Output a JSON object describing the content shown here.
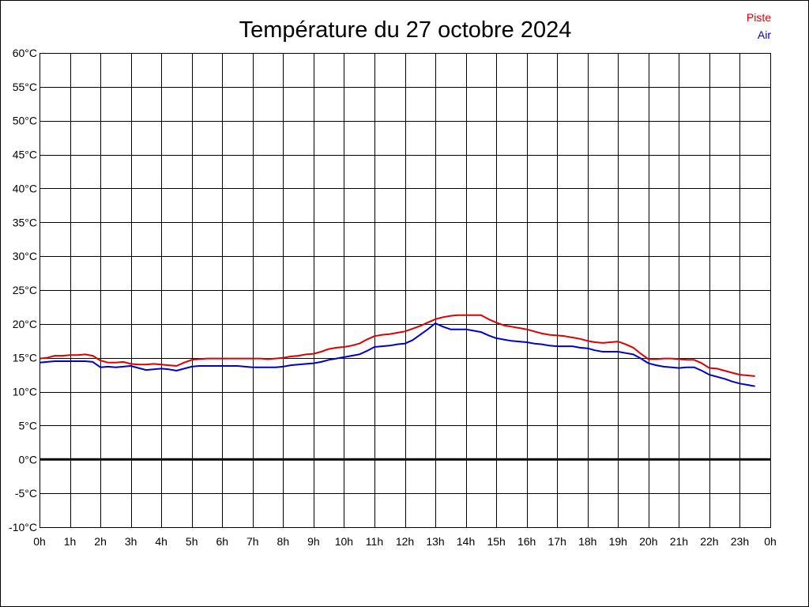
{
  "chart_data": {
    "type": "line",
    "title": "Température du 27 octobre 2024",
    "xlabel": "",
    "ylabel": "",
    "x_ticks": [
      "0h",
      "1h",
      "2h",
      "3h",
      "4h",
      "5h",
      "6h",
      "7h",
      "8h",
      "9h",
      "10h",
      "11h",
      "12h",
      "13h",
      "14h",
      "15h",
      "16h",
      "17h",
      "18h",
      "19h",
      "20h",
      "21h",
      "22h",
      "23h",
      "0h"
    ],
    "y_ticks": [
      "60°C",
      "55°C",
      "50°C",
      "45°C",
      "40°C",
      "35°C",
      "30°C",
      "25°C",
      "20°C",
      "15°C",
      "10°C",
      "5°C",
      "0°C",
      "-5°C",
      "-10°C"
    ],
    "xlim": [
      0,
      24
    ],
    "ylim": [
      -10,
      60
    ],
    "grid": true,
    "zero_line": true,
    "legend_position": "top-right",
    "series": [
      {
        "name": "Piste",
        "color": "#dd0000",
        "points": [
          [
            0,
            14.9
          ],
          [
            0.25,
            15.0
          ],
          [
            0.5,
            15.3
          ],
          [
            0.75,
            15.3
          ],
          [
            1,
            15.4
          ],
          [
            1.25,
            15.4
          ],
          [
            1.5,
            15.5
          ],
          [
            1.75,
            15.3
          ],
          [
            2,
            14.6
          ],
          [
            2.25,
            14.3
          ],
          [
            2.5,
            14.3
          ],
          [
            2.75,
            14.4
          ],
          [
            3,
            14.1
          ],
          [
            3.25,
            14.0
          ],
          [
            3.5,
            14.0
          ],
          [
            3.75,
            14.1
          ],
          [
            4,
            14.0
          ],
          [
            4.25,
            13.9
          ],
          [
            4.5,
            13.8
          ],
          [
            4.75,
            14.3
          ],
          [
            5,
            14.7
          ],
          [
            5.25,
            14.8
          ],
          [
            5.5,
            14.9
          ],
          [
            5.75,
            14.9
          ],
          [
            6,
            14.9
          ],
          [
            6.5,
            14.9
          ],
          [
            7,
            14.9
          ],
          [
            7.25,
            14.9
          ],
          [
            7.5,
            14.8
          ],
          [
            7.75,
            14.9
          ],
          [
            8,
            15.0
          ],
          [
            8.25,
            15.2
          ],
          [
            8.5,
            15.3
          ],
          [
            8.75,
            15.5
          ],
          [
            9,
            15.6
          ],
          [
            9.25,
            15.9
          ],
          [
            9.5,
            16.3
          ],
          [
            9.75,
            16.5
          ],
          [
            10,
            16.6
          ],
          [
            10.25,
            16.8
          ],
          [
            10.5,
            17.1
          ],
          [
            10.75,
            17.7
          ],
          [
            11,
            18.2
          ],
          [
            11.25,
            18.4
          ],
          [
            11.5,
            18.5
          ],
          [
            11.75,
            18.7
          ],
          [
            12,
            18.9
          ],
          [
            12.25,
            19.3
          ],
          [
            12.5,
            19.7
          ],
          [
            12.75,
            20.2
          ],
          [
            13,
            20.7
          ],
          [
            13.25,
            21.0
          ],
          [
            13.5,
            21.2
          ],
          [
            13.75,
            21.3
          ],
          [
            14,
            21.3
          ],
          [
            14.25,
            21.3
          ],
          [
            14.5,
            21.3
          ],
          [
            14.75,
            20.7
          ],
          [
            15,
            20.2
          ],
          [
            15.25,
            19.8
          ],
          [
            15.5,
            19.6
          ],
          [
            15.75,
            19.4
          ],
          [
            16,
            19.2
          ],
          [
            16.25,
            18.9
          ],
          [
            16.5,
            18.6
          ],
          [
            16.75,
            18.4
          ],
          [
            17,
            18.3
          ],
          [
            17.25,
            18.2
          ],
          [
            17.5,
            18.0
          ],
          [
            17.75,
            17.8
          ],
          [
            18,
            17.5
          ],
          [
            18.25,
            17.3
          ],
          [
            18.5,
            17.2
          ],
          [
            18.75,
            17.3
          ],
          [
            19,
            17.4
          ],
          [
            19.25,
            17.0
          ],
          [
            19.5,
            16.5
          ],
          [
            19.75,
            15.6
          ],
          [
            20,
            14.8
          ],
          [
            20.25,
            14.8
          ],
          [
            20.5,
            14.9
          ],
          [
            20.75,
            14.9
          ],
          [
            21,
            14.8
          ],
          [
            21.25,
            14.7
          ],
          [
            21.5,
            14.7
          ],
          [
            21.75,
            14.2
          ],
          [
            22,
            13.5
          ],
          [
            22.25,
            13.4
          ],
          [
            22.5,
            13.1
          ],
          [
            22.75,
            12.8
          ],
          [
            23,
            12.5
          ],
          [
            23.25,
            12.4
          ],
          [
            23.5,
            12.3
          ]
        ]
      },
      {
        "name": "Air",
        "color": "#0000cc",
        "points": [
          [
            0,
            14.3
          ],
          [
            0.25,
            14.4
          ],
          [
            0.5,
            14.5
          ],
          [
            0.75,
            14.5
          ],
          [
            1,
            14.5
          ],
          [
            1.25,
            14.5
          ],
          [
            1.5,
            14.5
          ],
          [
            1.75,
            14.4
          ],
          [
            2,
            13.6
          ],
          [
            2.25,
            13.7
          ],
          [
            2.5,
            13.6
          ],
          [
            2.75,
            13.7
          ],
          [
            3,
            13.8
          ],
          [
            3.25,
            13.5
          ],
          [
            3.5,
            13.2
          ],
          [
            3.75,
            13.3
          ],
          [
            4,
            13.4
          ],
          [
            4.25,
            13.3
          ],
          [
            4.5,
            13.1
          ],
          [
            4.75,
            13.4
          ],
          [
            5,
            13.7
          ],
          [
            5.25,
            13.8
          ],
          [
            5.5,
            13.8
          ],
          [
            5.75,
            13.8
          ],
          [
            6,
            13.8
          ],
          [
            6.5,
            13.8
          ],
          [
            7,
            13.6
          ],
          [
            7.25,
            13.6
          ],
          [
            7.5,
            13.6
          ],
          [
            7.75,
            13.6
          ],
          [
            8,
            13.7
          ],
          [
            8.25,
            13.9
          ],
          [
            8.5,
            14.0
          ],
          [
            8.75,
            14.1
          ],
          [
            9,
            14.2
          ],
          [
            9.25,
            14.4
          ],
          [
            9.5,
            14.7
          ],
          [
            9.75,
            14.9
          ],
          [
            10,
            15.1
          ],
          [
            10.25,
            15.3
          ],
          [
            10.5,
            15.5
          ],
          [
            10.75,
            16.0
          ],
          [
            11,
            16.6
          ],
          [
            11.25,
            16.7
          ],
          [
            11.5,
            16.8
          ],
          [
            11.75,
            17.0
          ],
          [
            12,
            17.1
          ],
          [
            12.25,
            17.6
          ],
          [
            12.5,
            18.4
          ],
          [
            12.75,
            19.2
          ],
          [
            13,
            20.1
          ],
          [
            13.25,
            19.6
          ],
          [
            13.5,
            19.2
          ],
          [
            13.75,
            19.2
          ],
          [
            14,
            19.2
          ],
          [
            14.25,
            19.0
          ],
          [
            14.5,
            18.8
          ],
          [
            14.75,
            18.3
          ],
          [
            15,
            17.9
          ],
          [
            15.25,
            17.7
          ],
          [
            15.5,
            17.5
          ],
          [
            15.75,
            17.4
          ],
          [
            16,
            17.3
          ],
          [
            16.25,
            17.1
          ],
          [
            16.5,
            17.0
          ],
          [
            16.75,
            16.8
          ],
          [
            17,
            16.7
          ],
          [
            17.25,
            16.7
          ],
          [
            17.5,
            16.7
          ],
          [
            17.75,
            16.5
          ],
          [
            18,
            16.4
          ],
          [
            18.25,
            16.1
          ],
          [
            18.5,
            15.9
          ],
          [
            18.75,
            15.9
          ],
          [
            19,
            15.9
          ],
          [
            19.25,
            15.7
          ],
          [
            19.5,
            15.5
          ],
          [
            19.75,
            14.9
          ],
          [
            20,
            14.2
          ],
          [
            20.25,
            13.9
          ],
          [
            20.5,
            13.7
          ],
          [
            20.75,
            13.6
          ],
          [
            21,
            13.5
          ],
          [
            21.25,
            13.6
          ],
          [
            21.5,
            13.6
          ],
          [
            21.75,
            13.1
          ],
          [
            22,
            12.5
          ],
          [
            22.25,
            12.2
          ],
          [
            22.5,
            11.9
          ],
          [
            22.75,
            11.5
          ],
          [
            23,
            11.2
          ],
          [
            23.25,
            11.0
          ],
          [
            23.5,
            10.8
          ]
        ]
      }
    ]
  }
}
